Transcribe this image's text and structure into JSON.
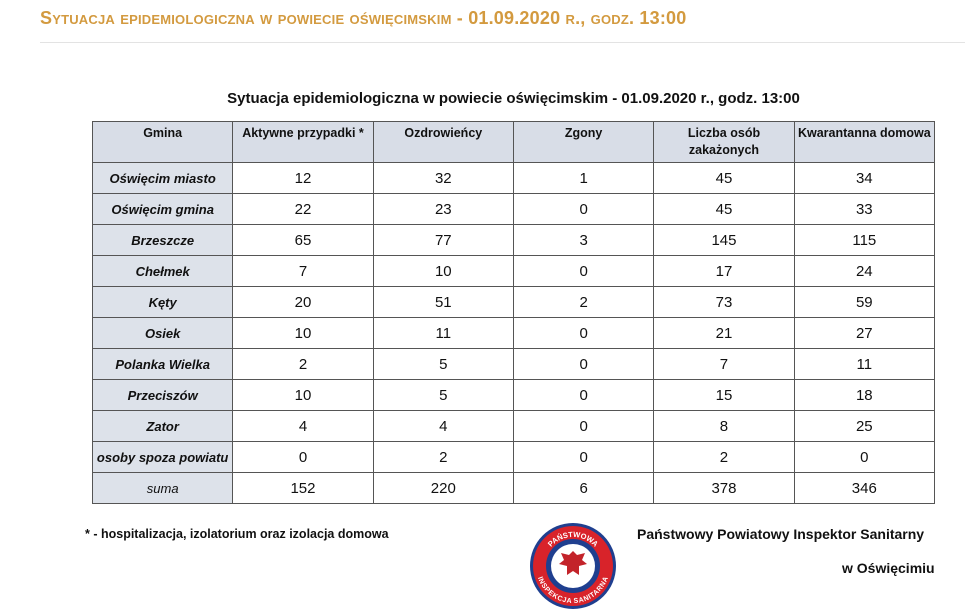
{
  "header": {
    "title": "Sytuacja epidemiologiczna w powiecie oświęcimskim - 01.09.2020 r., godz. 13:00"
  },
  "table": {
    "caption": "Sytuacja epidemiologiczna w powiecie oświęcimskim - 01.09.2020 r., godz. 13:00",
    "columns": [
      "Gmina",
      "Aktywne przypadki *",
      "Ozdrowieńcy",
      "Zgony",
      "Liczba osób zakażonych",
      "Kwarantanna domowa"
    ],
    "rows": [
      [
        "Oświęcim miasto",
        12,
        32,
        1,
        45,
        34
      ],
      [
        "Oświęcim gmina",
        22,
        23,
        0,
        45,
        33
      ],
      [
        "Brzeszcze",
        65,
        77,
        3,
        145,
        115
      ],
      [
        "Chełmek",
        7,
        10,
        0,
        17,
        24
      ],
      [
        "Kęty",
        20,
        51,
        2,
        73,
        59
      ],
      [
        "Osiek",
        10,
        11,
        0,
        21,
        27
      ],
      [
        "Polanka Wielka",
        2,
        5,
        0,
        7,
        11
      ],
      [
        "Przeciszów",
        10,
        5,
        0,
        15,
        18
      ],
      [
        "Zator",
        4,
        4,
        0,
        8,
        25
      ],
      [
        "osoby spoza powiatu",
        0,
        2,
        0,
        2,
        0
      ]
    ],
    "total": [
      "suma",
      152,
      220,
      6,
      378,
      346
    ]
  },
  "footnote": "* - hospitalizacja, izolatorium oraz izolacja domowa",
  "logo": {
    "top": "PAŃSTWOWA",
    "bottom": "INSPEKCJA SANITARNA"
  },
  "signature": {
    "line1": "Państwowy Powiatowy Inspektor Sanitarny",
    "line2": "w Oświęcimiu"
  }
}
